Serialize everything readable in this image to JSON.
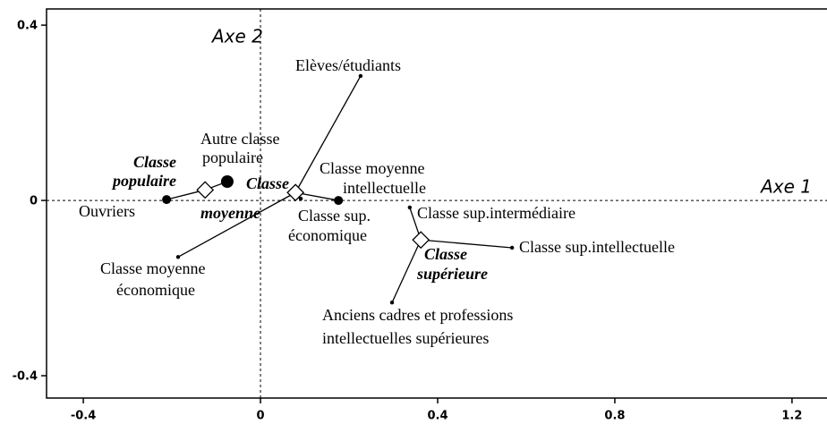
{
  "chart_data": {
    "type": "scatter",
    "x_label": "Axe 1",
    "y_label": "Axe 2",
    "xlim": [
      -0.483,
      1.279
    ],
    "ylim": [
      -0.451,
      0.437
    ],
    "xticks": [
      -0.4,
      0,
      0.4,
      0.8,
      1.2
    ],
    "yticks": [
      0.4,
      0,
      -0.4
    ],
    "color": "#000000",
    "groups": [
      {
        "label": [
          "Classe",
          "populaire"
        ],
        "x": -0.125,
        "y": 0.024,
        "marker": "diamond",
        "members": [
          {
            "label": [
              "Ouvriers"
            ],
            "x": -0.212,
            "y": 0.002,
            "marker": "medium"
          },
          {
            "label": [
              "Autre classe",
              "populaire"
            ],
            "x": -0.075,
            "y": 0.043,
            "marker": "large"
          }
        ]
      },
      {
        "label": [
          "Classe",
          "moyenne"
        ],
        "x": 0.079,
        "y": 0.018,
        "marker": "diamond",
        "members": [
          {
            "label": [
              "Elèves/étudiants"
            ],
            "x": 0.226,
            "y": 0.284,
            "marker": "small"
          },
          {
            "label": [
              "Classe moyenne",
              "intellectuelle"
            ],
            "x": 0.176,
            "y": 0.0,
            "marker": "medium"
          },
          {
            "label": [
              "Classe moyenne",
              "économique"
            ],
            "x": -0.186,
            "y": -0.129,
            "marker": "small"
          },
          {
            "label": [
              "Classe sup.",
              "économique"
            ],
            "x": 0.091,
            "y": 0.004,
            "marker": "small"
          }
        ]
      },
      {
        "label": [
          "Classe",
          "supérieure"
        ],
        "x": 0.362,
        "y": -0.09,
        "marker": "diamond",
        "members": [
          {
            "label": [
              "Classe sup.intermédiaire"
            ],
            "x": 0.337,
            "y": -0.016,
            "marker": "small"
          },
          {
            "label": [
              "Classe sup.intellectuelle"
            ],
            "x": 0.568,
            "y": -0.108,
            "marker": "small"
          },
          {
            "label": [
              "Anciens cadres et professions",
              "intellectuelles supérieures"
            ],
            "x": 0.297,
            "y": -0.233,
            "marker": "small"
          }
        ]
      }
    ]
  }
}
